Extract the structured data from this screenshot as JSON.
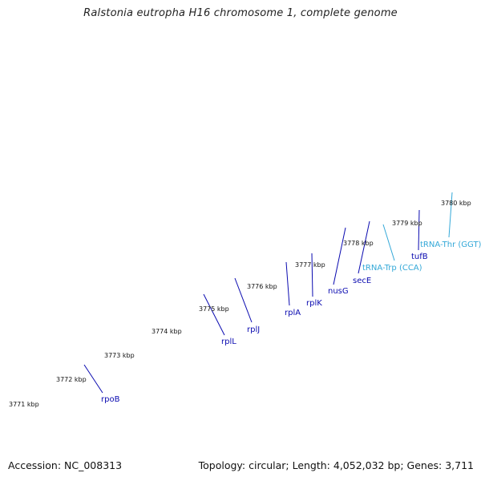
{
  "title": "Ralstonia eutropha H16 chromosome 1, complete genome",
  "footer": {
    "accession": "Accession: NC_008313",
    "summary": "Topology: circular; Length: 4,052,032 bp; Genes: 3,711"
  },
  "colors": {
    "backbone": "#888888",
    "cds": "#0000e6",
    "gene": "#e98585",
    "gene_highlight": "#ff8a00",
    "misc": "#88ee22",
    "trna": "#33bbee",
    "tick": "#1f7a1f",
    "gene_label": "#0a0ab0",
    "trna_label": "#33a8d8"
  },
  "kbp_labels": [
    {
      "text": "3771 kbp"
    },
    {
      "text": "3772 kbp"
    },
    {
      "text": "3773 kbp"
    },
    {
      "text": "3774 kbp"
    },
    {
      "text": "3775 kbp"
    },
    {
      "text": "3776 kbp"
    },
    {
      "text": "3777 kbp"
    },
    {
      "text": "3778 kbp"
    },
    {
      "text": "3779 kbp"
    },
    {
      "text": "3780 kbp"
    }
  ],
  "gene_labels": [
    {
      "text": "rpoB",
      "type": "gene"
    },
    {
      "text": "rplL",
      "type": "gene"
    },
    {
      "text": "rplJ",
      "type": "gene"
    },
    {
      "text": "rplA",
      "type": "gene"
    },
    {
      "text": "rplK",
      "type": "gene"
    },
    {
      "text": "nusG",
      "type": "gene"
    },
    {
      "text": "secE",
      "type": "gene"
    },
    {
      "text": "tRNA-Trp (CCA)",
      "type": "trna"
    },
    {
      "text": "tufB",
      "type": "gene"
    },
    {
      "text": "tRNA-Thr (GGT)",
      "type": "trna"
    }
  ]
}
